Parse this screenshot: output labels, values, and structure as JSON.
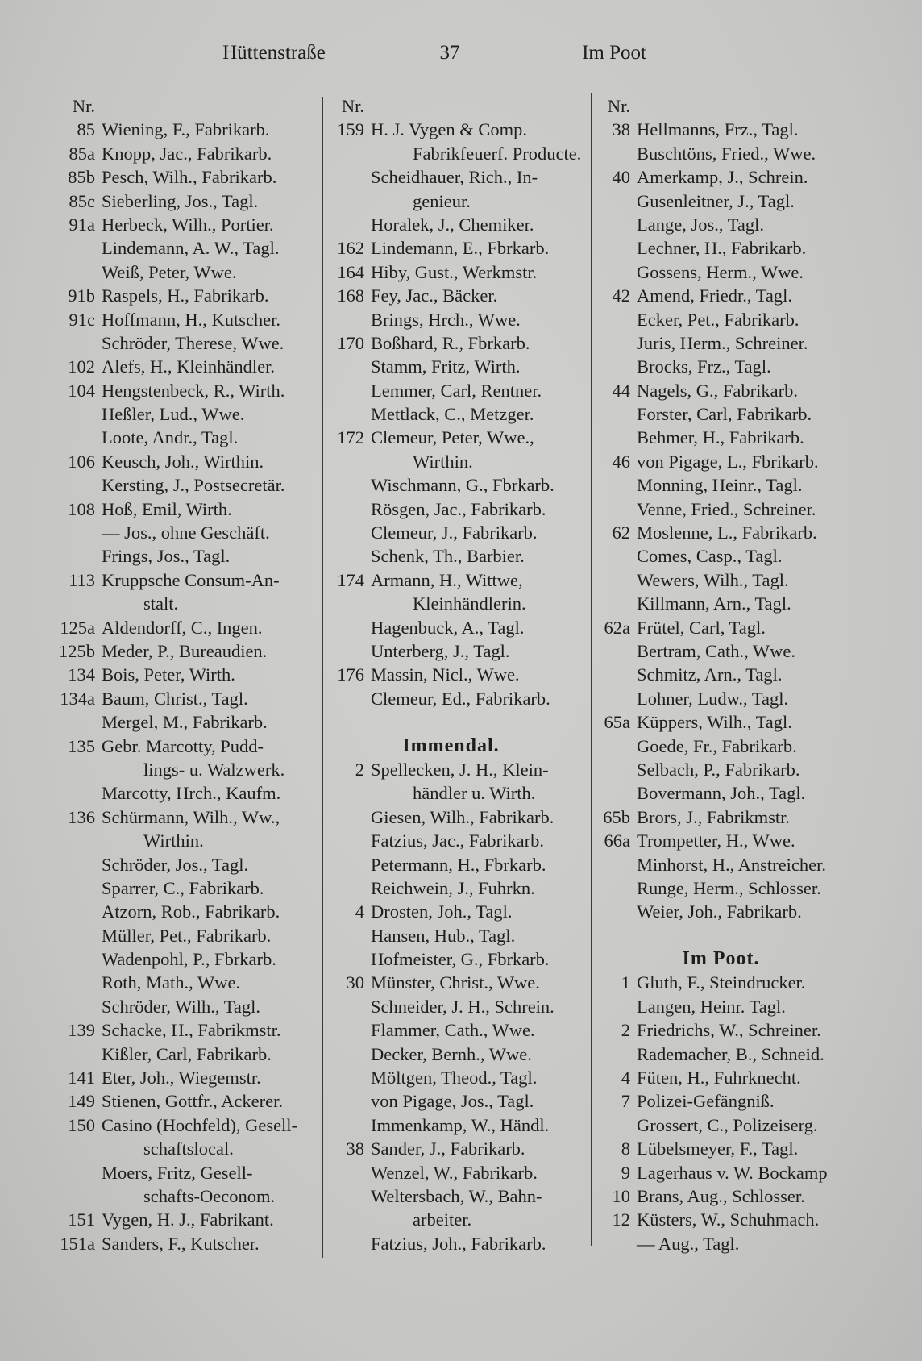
{
  "header": {
    "left": "Hüttenstraße",
    "page_number": "37",
    "right": "Im Poot"
  },
  "columns": [
    {
      "rows": [
        {
          "nr": "Nr.",
          "text": ""
        },
        {
          "nr": "85",
          "text": "Wiening, F., Fabrikarb."
        },
        {
          "nr": "85a",
          "text": "Knopp, Jac., Fabrikarb."
        },
        {
          "nr": "85b",
          "text": "Pesch, Wilh., Fabrikarb."
        },
        {
          "nr": "85c",
          "text": "Sieberling, Jos., Tagl."
        },
        {
          "nr": "91a",
          "text": "Herbeck, Wilh., Portier."
        },
        {
          "nr": "",
          "text": "Lindemann, A. W., Tagl."
        },
        {
          "nr": "",
          "text": "Weiß, Peter, Wwe."
        },
        {
          "nr": "91b",
          "text": "Raspels, H., Fabrikarb."
        },
        {
          "nr": "91c",
          "text": "Hoffmann, H., Kutscher."
        },
        {
          "nr": "",
          "text": "Schröder, Therese, Wwe."
        },
        {
          "nr": "102",
          "text": "Alefs, H., Kleinhändler."
        },
        {
          "nr": "104",
          "text": "Hengstenbeck, R., Wirth."
        },
        {
          "nr": "",
          "text": "Heßler, Lud., Wwe."
        },
        {
          "nr": "",
          "text": "Loote, Andr., Tagl."
        },
        {
          "nr": "106",
          "text": "Keusch, Joh., Wirthin."
        },
        {
          "nr": "",
          "text": "Kersting, J., Postsecretär."
        },
        {
          "nr": "108",
          "text": "Hoß, Emil, Wirth."
        },
        {
          "nr": "",
          "text": "— Jos., ohne Geschäft."
        },
        {
          "nr": "",
          "text": "Frings, Jos., Tagl."
        },
        {
          "nr": "113",
          "text": "Kruppsche Consum-An-"
        },
        {
          "nr": "",
          "text": "stalt.",
          "sub": true
        },
        {
          "nr": "125a",
          "text": "Aldendorff, C., Ingen."
        },
        {
          "nr": "125b",
          "text": "Meder, P., Bureaudien."
        },
        {
          "nr": "134",
          "text": "Bois, Peter, Wirth."
        },
        {
          "nr": "134a",
          "text": "Baum, Christ., Tagl."
        },
        {
          "nr": "",
          "text": "Mergel, M., Fabrikarb."
        },
        {
          "nr": "135",
          "text": "Gebr. Marcotty, Pudd-"
        },
        {
          "nr": "",
          "text": "lings- u. Walzwerk.",
          "sub": true
        },
        {
          "nr": "",
          "text": "Marcotty, Hrch., Kaufm."
        },
        {
          "nr": "136",
          "text": "Schürmann, Wilh., Ww.,"
        },
        {
          "nr": "",
          "text": "Wirthin.",
          "sub": true
        },
        {
          "nr": "",
          "text": "Schröder, Jos., Tagl."
        },
        {
          "nr": "",
          "text": "Sparrer, C., Fabrikarb."
        },
        {
          "nr": "",
          "text": "Atzorn, Rob., Fabrikarb."
        },
        {
          "nr": "",
          "text": "Müller, Pet., Fabrikarb."
        },
        {
          "nr": "",
          "text": "Wadenpohl, P., Fbrkarb."
        },
        {
          "nr": "",
          "text": "Roth, Math., Wwe."
        },
        {
          "nr": "",
          "text": "Schröder, Wilh., Tagl."
        },
        {
          "nr": "139",
          "text": "Schacke, H., Fabrikmstr."
        },
        {
          "nr": "",
          "text": "Kißler, Carl, Fabrikarb."
        },
        {
          "nr": "141",
          "text": "Eter, Joh., Wiegemstr."
        },
        {
          "nr": "149",
          "text": "Stienen, Gottfr., Ackerer."
        },
        {
          "nr": "150",
          "text": "Casino (Hochfeld), Gesell-"
        },
        {
          "nr": "",
          "text": "schaftslocal.",
          "sub": true
        },
        {
          "nr": "",
          "text": "Moers, Fritz, Gesell-"
        },
        {
          "nr": "",
          "text": "schafts-Oeconom.",
          "sub": true
        },
        {
          "nr": "151",
          "text": "Vygen, H. J., Fabrikant."
        },
        {
          "nr": "151a",
          "text": "Sanders, F., Kutscher."
        }
      ]
    },
    {
      "rows": [
        {
          "nr": "Nr.",
          "text": ""
        },
        {
          "nr": "159",
          "text": "H. J. Vygen & Comp."
        },
        {
          "nr": "",
          "text": "Fabrikfeuerf. Producte.",
          "sub": true
        },
        {
          "nr": "",
          "text": "Scheidhauer, Rich., In-"
        },
        {
          "nr": "",
          "text": "genieur.",
          "sub": true
        },
        {
          "nr": "",
          "text": "Horalek, J., Chemiker."
        },
        {
          "nr": "162",
          "text": "Lindemann, E., Fbrkarb."
        },
        {
          "nr": "164",
          "text": "Hiby, Gust., Werkmstr."
        },
        {
          "nr": "168",
          "text": "Fey, Jac., Bäcker."
        },
        {
          "nr": "",
          "text": "Brings, Hrch., Wwe."
        },
        {
          "nr": "170",
          "text": "Boßhard, R., Fbrkarb."
        },
        {
          "nr": "",
          "text": "Stamm, Fritz, Wirth."
        },
        {
          "nr": "",
          "text": "Lemmer, Carl, Rentner."
        },
        {
          "nr": "",
          "text": "Mettlack, C., Metzger."
        },
        {
          "nr": "172",
          "text": "Clemeur, Peter, Wwe.,"
        },
        {
          "nr": "",
          "text": "Wirthin.",
          "sub": true
        },
        {
          "nr": "",
          "text": "Wischmann, G., Fbrkarb."
        },
        {
          "nr": "",
          "text": "Rösgen, Jac., Fabrikarb."
        },
        {
          "nr": "",
          "text": "Clemeur, J., Fabrikarb."
        },
        {
          "nr": "",
          "text": "Schenk, Th., Barbier."
        },
        {
          "nr": "174",
          "text": "Armann, H., Wittwe,"
        },
        {
          "nr": "",
          "text": "Kleinhändlerin.",
          "sub": true
        },
        {
          "nr": "",
          "text": "Hagenbuck, A., Tagl."
        },
        {
          "nr": "",
          "text": "Unterberg, J., Tagl."
        },
        {
          "nr": "176",
          "text": "Massin, Nicl., Wwe."
        },
        {
          "nr": "",
          "text": "Clemeur, Ed., Fabrikarb."
        },
        {
          "nr": "",
          "text": ""
        },
        {
          "heading": "Immendal."
        },
        {
          "nr": "2",
          "text": "Spellecken, J. H., Klein-"
        },
        {
          "nr": "",
          "text": "händler u. Wirth.",
          "sub": true
        },
        {
          "nr": "",
          "text": "Giesen, Wilh., Fabrikarb."
        },
        {
          "nr": "",
          "text": "Fatzius, Jac., Fabrikarb."
        },
        {
          "nr": "",
          "text": "Petermann, H., Fbrkarb."
        },
        {
          "nr": "",
          "text": "Reichwein, J., Fuhrkn."
        },
        {
          "nr": "4",
          "text": "Drosten, Joh., Tagl."
        },
        {
          "nr": "",
          "text": "Hansen, Hub., Tagl."
        },
        {
          "nr": "",
          "text": "Hofmeister, G., Fbrkarb."
        },
        {
          "nr": "30",
          "text": "Münster, Christ., Wwe."
        },
        {
          "nr": "",
          "text": "Schneider, J. H., Schrein."
        },
        {
          "nr": "",
          "text": "Flammer, Cath., Wwe."
        },
        {
          "nr": "",
          "text": "Decker, Bernh., Wwe."
        },
        {
          "nr": "",
          "text": "Möltgen, Theod., Tagl."
        },
        {
          "nr": "",
          "text": "von Pigage, Jos., Tagl."
        },
        {
          "nr": "",
          "text": "Immenkamp, W., Händl."
        },
        {
          "nr": "38",
          "text": "Sander, J., Fabrikarb."
        },
        {
          "nr": "",
          "text": "Wenzel, W., Fabrikarb."
        },
        {
          "nr": "",
          "text": "Weltersbach, W., Bahn-"
        },
        {
          "nr": "",
          "text": "arbeiter.",
          "sub": true
        },
        {
          "nr": "",
          "text": "Fatzius, Joh., Fabrikarb."
        }
      ]
    },
    {
      "rows": [
        {
          "nr": "Nr.",
          "text": ""
        },
        {
          "nr": "38",
          "text": "Hellmanns, Frz., Tagl."
        },
        {
          "nr": "",
          "text": "Buschtöns, Fried., Wwe."
        },
        {
          "nr": "40",
          "text": "Amerkamp, J., Schrein."
        },
        {
          "nr": "",
          "text": "Gusenleitner, J., Tagl."
        },
        {
          "nr": "",
          "text": "Lange, Jos., Tagl."
        },
        {
          "nr": "",
          "text": "Lechner, H., Fabrikarb."
        },
        {
          "nr": "",
          "text": "Gossens, Herm., Wwe."
        },
        {
          "nr": "42",
          "text": "Amend, Friedr., Tagl."
        },
        {
          "nr": "",
          "text": "Ecker, Pet., Fabrikarb."
        },
        {
          "nr": "",
          "text": "Juris, Herm., Schreiner."
        },
        {
          "nr": "",
          "text": "Brocks, Frz., Tagl."
        },
        {
          "nr": "44",
          "text": "Nagels, G., Fabrikarb."
        },
        {
          "nr": "",
          "text": "Forster, Carl, Fabrikarb."
        },
        {
          "nr": "",
          "text": "Behmer, H., Fabrikarb."
        },
        {
          "nr": "46",
          "text": "von Pigage, L., Fbrikarb."
        },
        {
          "nr": "",
          "text": "Monning, Heinr., Tagl."
        },
        {
          "nr": "",
          "text": "Venne, Fried., Schreiner."
        },
        {
          "nr": "62",
          "text": "Moslenne, L., Fabrikarb."
        },
        {
          "nr": "",
          "text": "Comes, Casp., Tagl."
        },
        {
          "nr": "",
          "text": "Wewers, Wilh., Tagl."
        },
        {
          "nr": "",
          "text": "Killmann, Arn., Tagl."
        },
        {
          "nr": "62a",
          "text": "Frütel, Carl, Tagl."
        },
        {
          "nr": "",
          "text": "Bertram, Cath., Wwe."
        },
        {
          "nr": "",
          "text": "Schmitz, Arn., Tagl."
        },
        {
          "nr": "",
          "text": "Lohner, Ludw., Tagl."
        },
        {
          "nr": "65a",
          "text": "Küppers, Wilh., Tagl."
        },
        {
          "nr": "",
          "text": "Goede, Fr., Fabrikarb."
        },
        {
          "nr": "",
          "text": "Selbach, P., Fabrikarb."
        },
        {
          "nr": "",
          "text": "Bovermann, Joh., Tagl."
        },
        {
          "nr": "65b",
          "text": "Brors, J., Fabrikmstr."
        },
        {
          "nr": "66a",
          "text": "Trompetter, H., Wwe."
        },
        {
          "nr": "",
          "text": "Minhorst, H., Anstreicher."
        },
        {
          "nr": "",
          "text": "Runge, Herm., Schlosser."
        },
        {
          "nr": "",
          "text": "Weier, Joh., Fabrikarb."
        },
        {
          "nr": "",
          "text": ""
        },
        {
          "heading": "Im Poot."
        },
        {
          "nr": "1",
          "text": "Gluth, F., Steindrucker."
        },
        {
          "nr": "",
          "text": "Langen, Heinr. Tagl."
        },
        {
          "nr": "2",
          "text": "Friedrichs, W., Schreiner."
        },
        {
          "nr": "",
          "text": "Rademacher, B., Schneid."
        },
        {
          "nr": "4",
          "text": "Füten, H., Fuhrknecht."
        },
        {
          "nr": "7",
          "text": "Polizei-Gefängniß."
        },
        {
          "nr": "",
          "text": "Grossert, C., Polizeiserg."
        },
        {
          "nr": "8",
          "text": "Lübelsmeyer, F., Tagl."
        },
        {
          "nr": "9",
          "text": "Lagerhaus v. W. Bockamp"
        },
        {
          "nr": "10",
          "text": "Brans, Aug., Schlosser."
        },
        {
          "nr": "12",
          "text": "Küsters, W., Schuhmach."
        },
        {
          "nr": "",
          "text": "— Aug., Tagl."
        }
      ]
    }
  ]
}
